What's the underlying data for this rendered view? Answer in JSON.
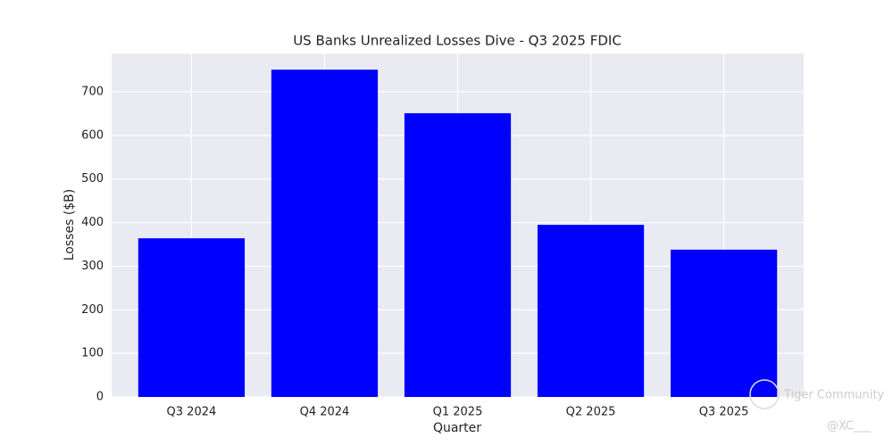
{
  "chart_data": {
    "type": "bar",
    "title": "US Banks Unrealized Losses Dive - Q3 2025 FDIC",
    "x_label": "Quarter",
    "y_label": "Losses ($B)",
    "categories": [
      "Q3 2024",
      "Q4 2024",
      "Q1 2025",
      "Q2 2025",
      "Q3 2025"
    ],
    "values": [
      364,
      751,
      651,
      395,
      338
    ],
    "color": "#0000ff",
    "ylim": [
      0,
      788
    ],
    "yticks": [
      0,
      100,
      200,
      300,
      400,
      500,
      600,
      700
    ],
    "grid": true,
    "watermark": "Tiger Community",
    "credit": "@XC___"
  }
}
